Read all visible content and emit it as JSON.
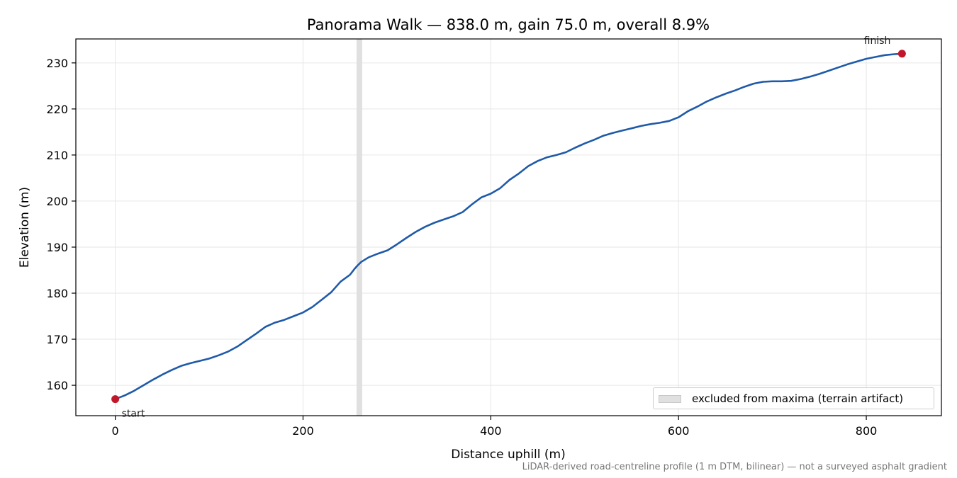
{
  "chart_data": {
    "type": "line",
    "title": "Panorama Walk — 838.0 m, gain 75.0 m, overall 8.9%",
    "xlabel": "Distance uphill (m)",
    "ylabel": "Elevation (m)",
    "xlim": [
      -42,
      880
    ],
    "ylim": [
      153.4,
      235.2
    ],
    "xticks": [
      0,
      200,
      400,
      600,
      800
    ],
    "yticks": [
      160,
      170,
      180,
      190,
      200,
      210,
      220,
      230
    ],
    "grid": true,
    "legend_position": "lower-right",
    "series": [
      {
        "color": "#1f5aa8",
        "points": [
          [
            0,
            157.0
          ],
          [
            10,
            157.8
          ],
          [
            20,
            158.8
          ],
          [
            30,
            160.0
          ],
          [
            40,
            161.2
          ],
          [
            50,
            162.3
          ],
          [
            60,
            163.3
          ],
          [
            70,
            164.2
          ],
          [
            80,
            164.8
          ],
          [
            90,
            165.3
          ],
          [
            100,
            165.8
          ],
          [
            110,
            166.5
          ],
          [
            120,
            167.3
          ],
          [
            130,
            168.4
          ],
          [
            140,
            169.8
          ],
          [
            150,
            171.2
          ],
          [
            160,
            172.7
          ],
          [
            170,
            173.6
          ],
          [
            180,
            174.2
          ],
          [
            190,
            175.0
          ],
          [
            200,
            175.8
          ],
          [
            210,
            177.0
          ],
          [
            220,
            178.6
          ],
          [
            230,
            180.2
          ],
          [
            240,
            182.5
          ],
          [
            250,
            184.0
          ],
          [
            255,
            185.3
          ],
          [
            258,
            186.0
          ],
          [
            262,
            186.8
          ],
          [
            270,
            187.8
          ],
          [
            280,
            188.6
          ],
          [
            290,
            189.3
          ],
          [
            300,
            190.6
          ],
          [
            310,
            192.0
          ],
          [
            320,
            193.3
          ],
          [
            330,
            194.4
          ],
          [
            340,
            195.3
          ],
          [
            350,
            196.0
          ],
          [
            360,
            196.7
          ],
          [
            370,
            197.6
          ],
          [
            380,
            199.3
          ],
          [
            390,
            200.8
          ],
          [
            400,
            201.6
          ],
          [
            410,
            202.8
          ],
          [
            420,
            204.6
          ],
          [
            430,
            206.0
          ],
          [
            440,
            207.6
          ],
          [
            450,
            208.7
          ],
          [
            460,
            209.5
          ],
          [
            470,
            210.0
          ],
          [
            480,
            210.6
          ],
          [
            490,
            211.6
          ],
          [
            500,
            212.5
          ],
          [
            510,
            213.3
          ],
          [
            520,
            214.2
          ],
          [
            530,
            214.8
          ],
          [
            540,
            215.3
          ],
          [
            550,
            215.8
          ],
          [
            560,
            216.3
          ],
          [
            570,
            216.7
          ],
          [
            580,
            217.0
          ],
          [
            590,
            217.4
          ],
          [
            600,
            218.2
          ],
          [
            610,
            219.5
          ],
          [
            620,
            220.5
          ],
          [
            630,
            221.6
          ],
          [
            640,
            222.5
          ],
          [
            650,
            223.3
          ],
          [
            660,
            224.0
          ],
          [
            670,
            224.8
          ],
          [
            680,
            225.5
          ],
          [
            690,
            225.9
          ],
          [
            700,
            226.0
          ],
          [
            710,
            226.0
          ],
          [
            720,
            226.1
          ],
          [
            730,
            226.5
          ],
          [
            740,
            227.0
          ],
          [
            750,
            227.6
          ],
          [
            760,
            228.3
          ],
          [
            770,
            229.0
          ],
          [
            780,
            229.7
          ],
          [
            790,
            230.3
          ],
          [
            800,
            230.9
          ],
          [
            810,
            231.3
          ],
          [
            820,
            231.7
          ],
          [
            830,
            231.9
          ],
          [
            838,
            232.0
          ]
        ]
      }
    ],
    "markers": [
      {
        "x": 0,
        "y": 157.0,
        "label": "start",
        "color": "#c0182a"
      },
      {
        "x": 838,
        "y": 232.0,
        "label": "finish",
        "color": "#c0182a"
      }
    ],
    "excluded_band": {
      "x_start": 257,
      "x_end": 263,
      "label": "excluded from maxima (terrain artifact)",
      "color": "#e0e0e0"
    },
    "footnote": "LiDAR-derived road-centreline profile (1 m DTM, bilinear) — not a surveyed asphalt gradient"
  }
}
